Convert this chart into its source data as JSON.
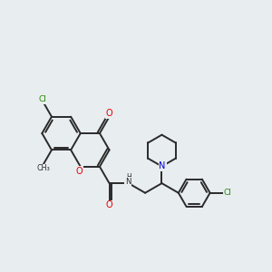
{
  "background_color": "#e8edf0",
  "bond_color": "#2a2a2a",
  "atom_colors": {
    "O": "#e60000",
    "N": "#0000cc",
    "Cl": "#228800",
    "C": "#2a2a2a"
  },
  "figsize": [
    3.0,
    3.0
  ],
  "dpi": 100
}
